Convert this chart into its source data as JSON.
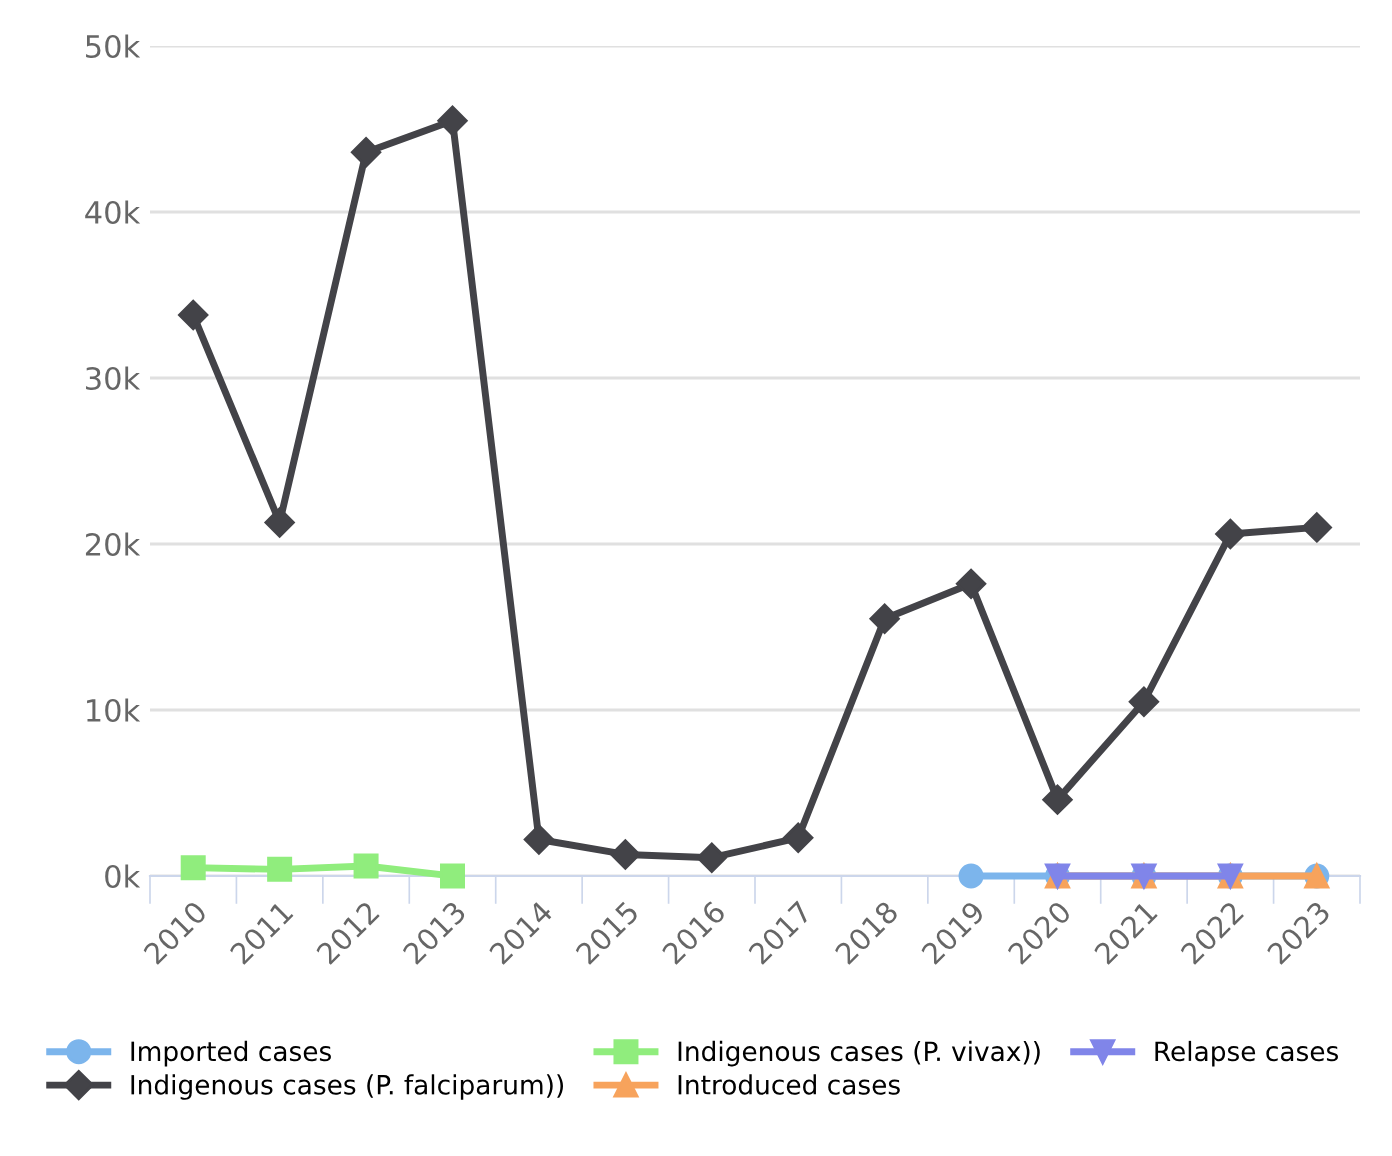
{
  "chart_data": {
    "type": "line",
    "categories": [
      "2010",
      "2011",
      "2012",
      "2013",
      "2014",
      "2015",
      "2016",
      "2017",
      "2018",
      "2019",
      "2020",
      "2021",
      "2022",
      "2023"
    ],
    "series": [
      {
        "name": "Imported cases",
        "color": "#7cb5ec",
        "marker": "circle",
        "values": [
          null,
          null,
          null,
          null,
          null,
          null,
          null,
          null,
          null,
          0,
          0,
          0,
          0,
          0
        ]
      },
      {
        "name": "Indigenous cases (P. falciparum))",
        "color": "#434348",
        "marker": "diamond",
        "values": [
          33800,
          21300,
          43600,
          45500,
          2200,
          1300,
          1100,
          2300,
          15500,
          17600,
          4600,
          10500,
          20600,
          21000
        ]
      },
      {
        "name": "Indigenous cases (P. vivax))",
        "color": "#90ed7d",
        "marker": "square",
        "values": [
          500,
          400,
          600,
          0,
          null,
          null,
          null,
          null,
          null,
          null,
          null,
          null,
          null,
          null
        ]
      },
      {
        "name": "Introduced cases",
        "color": "#f7a35c",
        "marker": "triangle",
        "values": [
          null,
          null,
          null,
          null,
          null,
          null,
          null,
          null,
          null,
          null,
          0,
          0,
          0,
          0
        ]
      },
      {
        "name": "Relapse cases",
        "color": "#8085e9",
        "marker": "triangle_down",
        "values": [
          null,
          null,
          null,
          null,
          null,
          null,
          null,
          null,
          null,
          null,
          0,
          0,
          0,
          null
        ]
      }
    ],
    "ylim": [
      0,
      50000
    ],
    "yticks": [
      {
        "value": 0,
        "label": "0k"
      },
      {
        "value": 10000,
        "label": "10k"
      },
      {
        "value": 20000,
        "label": "20k"
      },
      {
        "value": 30000,
        "label": "30k"
      },
      {
        "value": 40000,
        "label": "40k"
      },
      {
        "value": 50000,
        "label": "50k"
      }
    ],
    "grid": "y",
    "legend": "bottom"
  }
}
